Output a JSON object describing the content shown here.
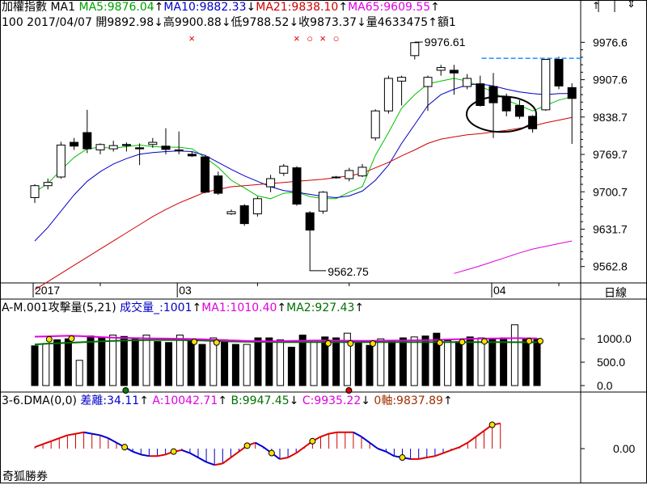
{
  "app_name": "奇狐勝券",
  "main_panel": {
    "row1": {
      "name": "加權指數",
      "period": "MA1",
      "ma5": "MA5:9876.04",
      "ma5_arrow": "↑",
      "ma10": "MA10:9882.33",
      "ma10_arrow": "↓",
      "ma21": "MA21:9838.10",
      "ma21_arrow": "↑",
      "ma65": "MA65:9609.55",
      "ma65_arrow": "↑"
    },
    "row2": "100 2017/04/07 開9892.98↓高9900.88↓低9788.52↓收9873.37↓量4633475↑額1",
    "marker_x": "×",
    "marker_o": "○",
    "high_label": "9976.61",
    "low_label": "9562.75",
    "y_ticks": [
      "9976.6",
      "9907.6",
      "9838.7",
      "9769.7",
      "9700.7",
      "9631.7",
      "9562.8"
    ],
    "x_labels": [
      "2017",
      "03",
      "04"
    ],
    "period_button": "日線"
  },
  "volume_panel": {
    "title": "A-M.001攻擊量(5,21)",
    "vol": "成交量_:1001",
    "vol_arrow": "↑",
    "ma1": "MA1:1010.40",
    "ma1_arrow": "↑",
    "ma2": "MA2:927.43",
    "ma2_arrow": "↑",
    "y_ticks": [
      "1000.0",
      "500.0",
      "0.0"
    ]
  },
  "dma_panel": {
    "title": "3-6.DMA(0,0)",
    "diff": "差離:34.11",
    "diff_arrow": "↑",
    "a": "A:10042.71",
    "a_arrow": "↑",
    "b": "B:9947.45",
    "b_arrow": "↓",
    "c": "C:9935.22",
    "c_arrow": "↓",
    "axis": "0軸:9837.89",
    "axis_arrow": "↑",
    "y_ticks": [
      "0.00"
    ]
  },
  "colors": {
    "ma5": "#00c000",
    "ma10": "#0000c8",
    "ma21": "#d00000",
    "ma65": "#e000e0",
    "up_candle": "#ffffff",
    "down_candle": "#000000",
    "dashed_level": "#1e90ff"
  },
  "chart_data": [
    {
      "type": "candlestick",
      "title": "加權指數",
      "ylim": [
        9540,
        9995
      ],
      "x_labels": [
        "2017",
        "03",
        "04"
      ],
      "series": [
        {
          "name": "candles",
          "ohlc": [
            [
              9690,
              9712,
              9680,
              9715
            ],
            [
              9712,
              9718,
              9705,
              9725
            ],
            [
              9728,
              9787,
              9725,
              9793
            ],
            [
              9792,
              9785,
              9778,
              9800
            ],
            [
              9810,
              9780,
              9772,
              9852
            ],
            [
              9778,
              9788,
              9770,
              9790
            ],
            [
              9780,
              9786,
              9775,
              9795
            ],
            [
              9788,
              9786,
              9775,
              9792
            ],
            [
              9782,
              9780,
              9750,
              9790
            ],
            [
              9788,
              9792,
              9782,
              9800
            ],
            [
              9785,
              9779,
              9770,
              9818
            ],
            [
              9778,
              9778,
              9770,
              9812
            ],
            [
              9770,
              9767,
              9765,
              9775
            ],
            [
              9765,
              9700,
              9698,
              9768
            ],
            [
              9730,
              9698,
              9695,
              9738
            ],
            [
              9660,
              9664,
              9658,
              9668
            ],
            [
              9675,
              9642,
              9638,
              9678
            ],
            [
              9660,
              9688,
              9655,
              9692
            ],
            [
              9710,
              9725,
              9700,
              9732
            ],
            [
              9735,
              9748,
              9730,
              9752
            ],
            [
              9745,
              9678,
              9675,
              9748
            ],
            [
              9662,
              9630,
              9570,
              9665
            ],
            [
              9665,
              9700,
              9660,
              9702
            ],
            [
              9728,
              9728,
              9725,
              9730
            ],
            [
              9725,
              9740,
              9720,
              9745
            ],
            [
              9730,
              9746,
              9728,
              9752
            ],
            [
              9800,
              9850,
              9795,
              9853
            ],
            [
              9850,
              9910,
              9845,
              9915
            ],
            [
              9905,
              9912,
              9860,
              9915
            ],
            [
              9952,
              9976,
              9945,
              9977
            ],
            [
              9895,
              9912,
              9850,
              9915
            ],
            [
              9925,
              9930,
              9915,
              9935
            ],
            [
              9925,
              9920,
              9880,
              9935
            ],
            [
              9895,
              9910,
              9890,
              9918
            ],
            [
              9900,
              9860,
              9858,
              9915
            ],
            [
              9895,
              9865,
              9800,
              9920
            ],
            [
              9875,
              9850,
              9840,
              9882
            ],
            [
              9860,
              9840,
              9835,
              9870
            ],
            [
              9840,
              9817,
              9810,
              9842
            ],
            [
              9852,
              9945,
              9850,
              9946
            ],
            [
              9945,
              9896,
              9890,
              9950
            ],
            [
              9893,
              9873,
              9789,
              9901
            ]
          ]
        },
        {
          "name": "MA5",
          "values": [
            9700,
            9716,
            9741,
            9764,
            9780,
            9783,
            9781,
            9784,
            9787,
            9784,
            9783,
            9783,
            9780,
            9764,
            9746,
            9722,
            9708,
            9693,
            9688,
            9698,
            9700,
            9692,
            9688,
            9688,
            9700,
            9710,
            9768,
            9810,
            9855,
            9880,
            9900,
            9905,
            9910,
            9905,
            9895,
            9885,
            9870,
            9860,
            9850,
            9860,
            9870,
            9876
          ]
        },
        {
          "name": "MA10",
          "values": [
            9610,
            9635,
            9665,
            9695,
            9720,
            9738,
            9752,
            9762,
            9770,
            9773,
            9775,
            9776,
            9775,
            9768,
            9755,
            9742,
            9730,
            9720,
            9710,
            9703,
            9700,
            9696,
            9692,
            9690,
            9693,
            9702,
            9722,
            9750,
            9790,
            9825,
            9860,
            9880,
            9890,
            9898,
            9900,
            9896,
            9890,
            9885,
            9882,
            9880,
            9882,
            9882
          ]
        },
        {
          "name": "MA21",
          "values": [
            9520,
            9535,
            9550,
            9565,
            9580,
            9595,
            9610,
            9625,
            9640,
            9655,
            9668,
            9680,
            9690,
            9700,
            9705,
            9710,
            9712,
            9714,
            9716,
            9718,
            9720,
            9722,
            9724,
            9727,
            9730,
            9735,
            9745,
            9755,
            9767,
            9778,
            9790,
            9798,
            9802,
            9806,
            9808,
            9811,
            9814,
            9818,
            9822,
            9828,
            9833,
            9838
          ]
        },
        {
          "name": "MA65",
          "values": [
            null,
            null,
            null,
            null,
            null,
            null,
            null,
            null,
            null,
            null,
            null,
            null,
            null,
            null,
            null,
            null,
            null,
            null,
            null,
            null,
            null,
            null,
            null,
            null,
            null,
            null,
            null,
            null,
            null,
            null,
            null,
            null,
            9550,
            9557,
            9564,
            9572,
            9580,
            9588,
            9595,
            9600,
            9605,
            9610
          ]
        }
      ],
      "annotations": [
        "9976.61",
        "9562.75"
      ],
      "y_ticks": [
        9976.6,
        9907.6,
        9838.7,
        9769.7,
        9700.7,
        9631.7,
        9562.8
      ]
    },
    {
      "type": "bar",
      "title": "A-M.001攻擊量(5,21)",
      "ylim": [
        0,
        1400
      ],
      "series": [
        {
          "name": "成交量_",
          "values": [
            850,
            900,
            980,
            1000,
            540,
            1060,
            1020,
            1080,
            1050,
            1000,
            1080,
            940,
            920,
            1080,
            980,
            880,
            1020,
            980,
            880,
            880,
            1020,
            1020,
            980,
            820,
            1080,
            960,
            1040,
            1020,
            1120,
            920,
            860,
            1000,
            960,
            1020,
            1040,
            1060,
            1120,
            960,
            940,
            1040,
            1020,
            1000,
            1020,
            1300,
            1000,
            1001
          ]
        },
        {
          "name": "MA1",
          "values": [
            1045,
            1050,
            1058,
            1065,
            1060,
            1048,
            1035,
            1025,
            1018,
            1014,
            1010,
            1008,
            1004,
            1000,
            995,
            990,
            980,
            970,
            962,
            955,
            950,
            948,
            950,
            955,
            960,
            962,
            962,
            962,
            960,
            958,
            958,
            960,
            962,
            965,
            968,
            970,
            975,
            985,
            992,
            1000,
            1005,
            1008,
            1010,
            1012,
            1011,
            1010
          ]
        },
        {
          "name": "MA2",
          "values": [
            880,
            895,
            905,
            915,
            925,
            935,
            945,
            955,
            962,
            968,
            972,
            975,
            975,
            972,
            968,
            962,
            955,
            948,
            942,
            938,
            935,
            932,
            930,
            930,
            930,
            930,
            930,
            930,
            930,
            930,
            930,
            930,
            929,
            929,
            929,
            928,
            928,
            928,
            928,
            928,
            928,
            928,
            928,
            927,
            927,
            927
          ]
        }
      ],
      "y_ticks": [
        1000.0,
        500.0,
        0.0
      ]
    },
    {
      "type": "histogram",
      "title": "3-6.DMA(0,0)",
      "ylim": [
        -50,
        50
      ],
      "series": [
        {
          "name": "差離",
          "values": [
            2,
            6,
            10,
            14,
            18,
            20,
            22,
            20,
            18,
            14,
            8,
            2,
            -4,
            -8,
            -10,
            -10,
            -8,
            -4,
            -2,
            -6,
            -12,
            -18,
            -22,
            -20,
            -12,
            -4,
            4,
            8,
            2,
            -6,
            -14,
            -12,
            -6,
            2,
            10,
            16,
            20,
            22,
            22,
            22,
            16,
            8,
            0,
            -4,
            -10,
            -12,
            -14,
            -14,
            -12,
            -10,
            -6,
            -2,
            2,
            8,
            16,
            24,
            32,
            34
          ]
        }
      ],
      "y_ticks": [
        0.0
      ]
    }
  ]
}
